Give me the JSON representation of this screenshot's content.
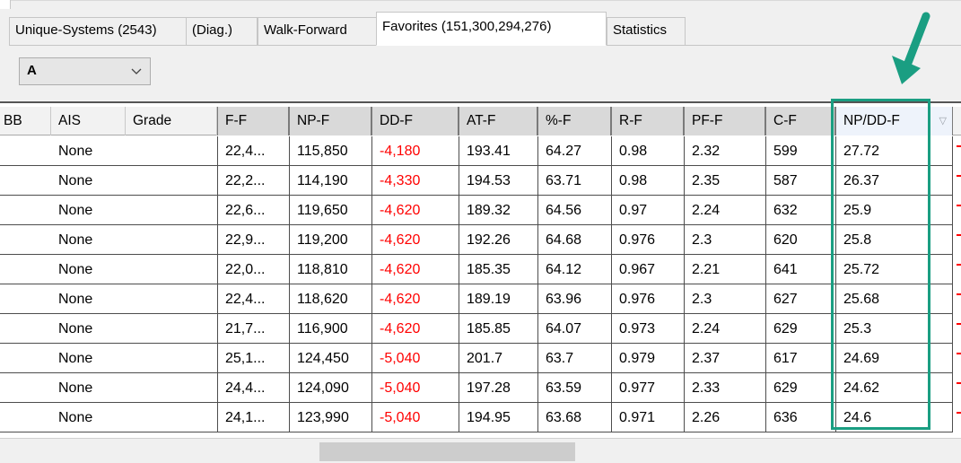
{
  "tabs": [
    {
      "label": "Unique-Systems (2543)"
    },
    {
      "label": "(Diag.)"
    },
    {
      "label": "Walk-Forward"
    },
    {
      "label": "Favorites (151,300,294,276)"
    },
    {
      "label": "Statistics"
    }
  ],
  "active_tab": "Favorites (151,300,294,276)",
  "filter": {
    "value": "A",
    "arrow_icon": "chevron-down-icon"
  },
  "columns": [
    "BB",
    "AIS",
    "Grade",
    "F-F",
    "NP-F",
    "DD-F",
    "AT-F",
    "%-F",
    "R-F",
    "PF-F",
    "C-F",
    "NP/DD-F"
  ],
  "sort_icon": "sort-descending-icon",
  "rows": [
    {
      "ais": "None",
      "grade": "",
      "ff": "22,4...",
      "npf": "115,850",
      "ddf": "-4,180",
      "atf": "193.41",
      "pf": "64.27",
      "rf": "0.98",
      "pff": "2.32",
      "cf": "599",
      "npdd": "27.72"
    },
    {
      "ais": "None",
      "grade": "",
      "ff": "22,2...",
      "npf": "114,190",
      "ddf": "-4,330",
      "atf": "194.53",
      "pf": "63.71",
      "rf": "0.98",
      "pff": "2.35",
      "cf": "587",
      "npdd": "26.37"
    },
    {
      "ais": "None",
      "grade": "",
      "ff": "22,6...",
      "npf": "119,650",
      "ddf": "-4,620",
      "atf": "189.32",
      "pf": "64.56",
      "rf": "0.97",
      "pff": "2.24",
      "cf": "632",
      "npdd": "25.9"
    },
    {
      "ais": "None",
      "grade": "",
      "ff": "22,9...",
      "npf": "119,200",
      "ddf": "-4,620",
      "atf": "192.26",
      "pf": "64.68",
      "rf": "0.976",
      "pff": "2.3",
      "cf": "620",
      "npdd": "25.8"
    },
    {
      "ais": "None",
      "grade": "",
      "ff": "22,0...",
      "npf": "118,810",
      "ddf": "-4,620",
      "atf": "185.35",
      "pf": "64.12",
      "rf": "0.967",
      "pff": "2.21",
      "cf": "641",
      "npdd": "25.72"
    },
    {
      "ais": "None",
      "grade": "",
      "ff": "22,4...",
      "npf": "118,620",
      "ddf": "-4,620",
      "atf": "189.19",
      "pf": "63.96",
      "rf": "0.976",
      "pff": "2.3",
      "cf": "627",
      "npdd": "25.68"
    },
    {
      "ais": "None",
      "grade": "",
      "ff": "21,7...",
      "npf": "116,900",
      "ddf": "-4,620",
      "atf": "185.85",
      "pf": "64.07",
      "rf": "0.973",
      "pff": "2.24",
      "cf": "629",
      "npdd": "25.3"
    },
    {
      "ais": "None",
      "grade": "",
      "ff": "25,1...",
      "npf": "124,450",
      "ddf": "-5,040",
      "atf": "201.7",
      "pf": "63.7",
      "rf": "0.979",
      "pff": "2.37",
      "cf": "617",
      "npdd": "24.69"
    },
    {
      "ais": "None",
      "grade": "",
      "ff": "24,4...",
      "npf": "124,090",
      "ddf": "-5,040",
      "atf": "197.28",
      "pf": "63.59",
      "rf": "0.977",
      "pff": "2.33",
      "cf": "629",
      "npdd": "24.62"
    },
    {
      "ais": "None",
      "grade": "",
      "ff": "24,1...",
      "npf": "123,990",
      "ddf": "-5,040",
      "atf": "194.95",
      "pf": "63.68",
      "rf": "0.971",
      "pff": "2.26",
      "cf": "636",
      "npdd": "24.6"
    }
  ],
  "colors": {
    "negative": "#ff0000",
    "highlight": "#1a9e82"
  },
  "annotation": {
    "arrow_icon": "arrow-down-icon",
    "highlight_box": "npdd-column-highlight"
  }
}
